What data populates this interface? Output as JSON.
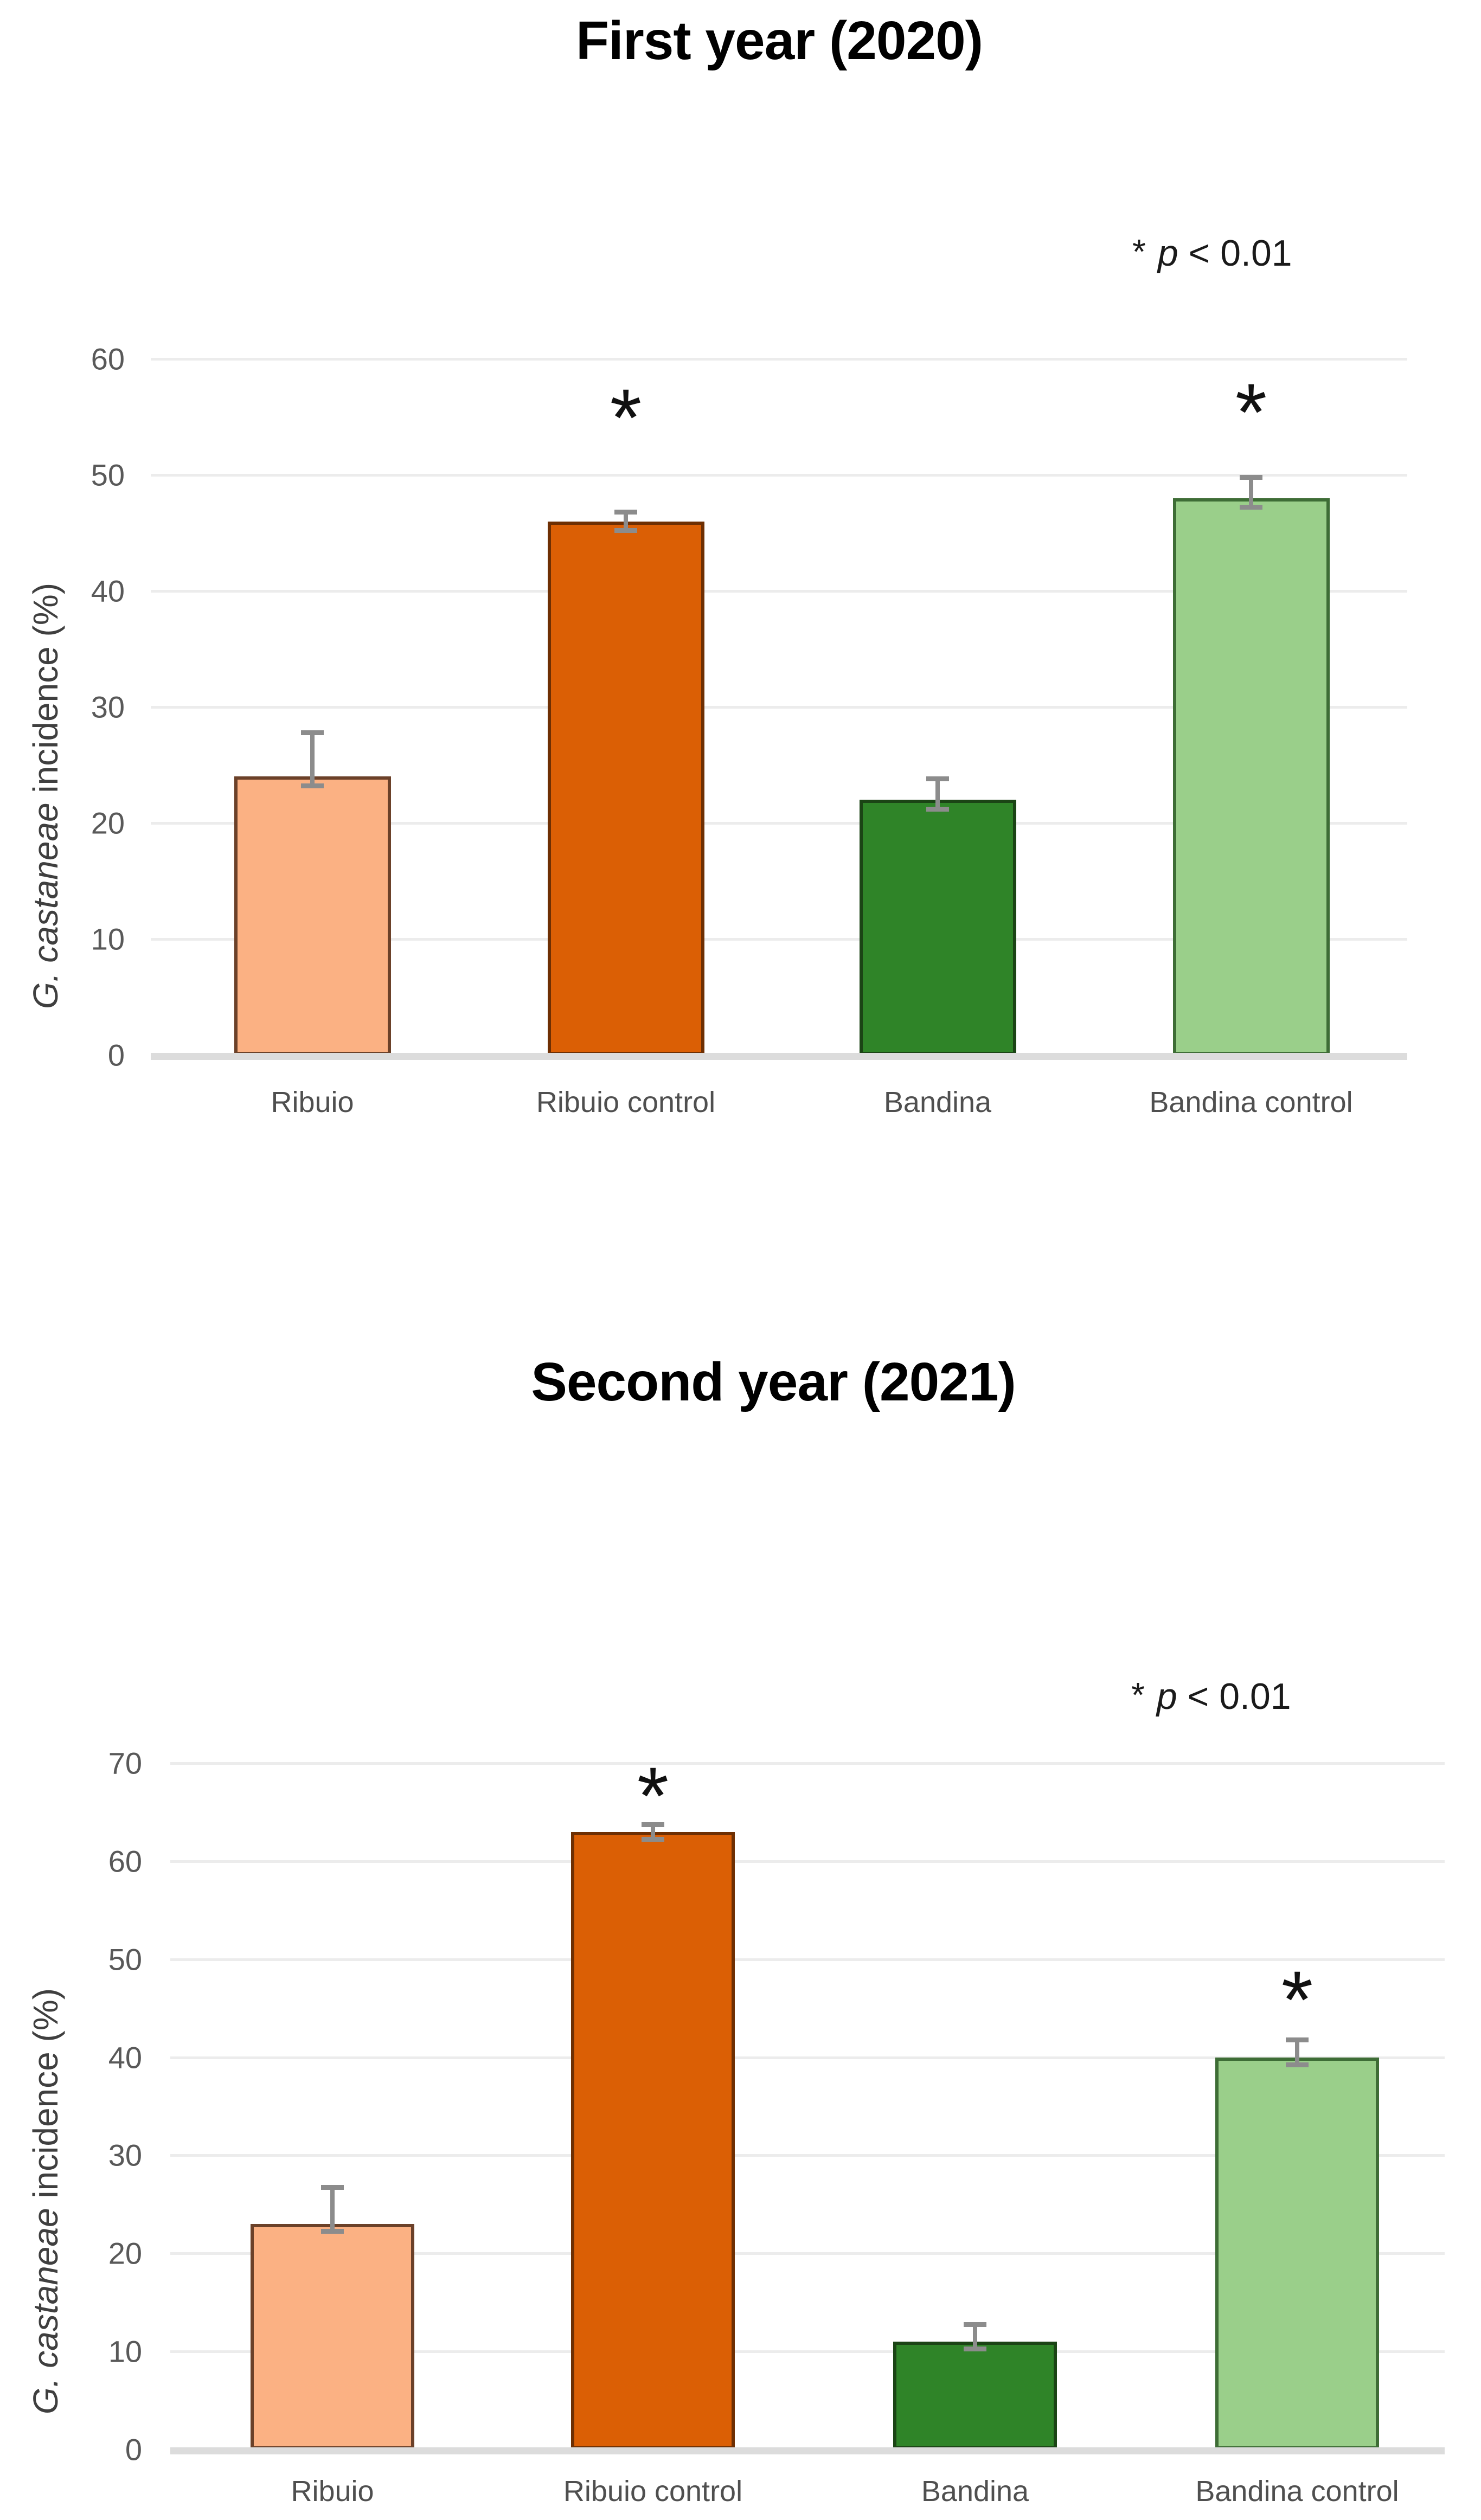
{
  "page": {
    "background": "#FFFFFF"
  },
  "chart_data": [
    {
      "id": "first-year-2020",
      "type": "bar",
      "title": "First year (2020)",
      "annotation": {
        "marker": "*",
        "p_symbol": "p",
        "threshold": " < 0.01"
      },
      "ylabel_italic": "G. castaneae",
      "ylabel_regular": " incidence (%)",
      "categories": [
        "Ribuio",
        "Ribuio control",
        "Bandina",
        "Bandina control"
      ],
      "values": [
        24,
        46,
        22,
        48
      ],
      "errors_plus": [
        4,
        1,
        2,
        2
      ],
      "errors_minus": [
        1,
        1,
        1,
        1
      ],
      "significant": [
        false,
        true,
        false,
        true
      ],
      "sig_marker": "*",
      "ylim": [
        0,
        60
      ],
      "ytick_step": 10,
      "yticks": [
        0,
        10,
        20,
        30,
        40,
        50,
        60
      ],
      "grid": "horizontal",
      "legend": "none",
      "bar_fill_colors": [
        "#FBB183",
        "#DB5F05",
        "#2F8428",
        "#9ACF8A"
      ],
      "bar_border_colors": [
        "#6B4129",
        "#6E2F03",
        "#1B4415",
        "#3E6D36"
      ]
    },
    {
      "id": "second-year-2021",
      "type": "bar",
      "title": "Second year (2021)",
      "annotation": {
        "marker": "*",
        "p_symbol": "p",
        "threshold": " < 0.01"
      },
      "ylabel_italic": "G. castaneae",
      "ylabel_regular": " incidence (%)",
      "categories": [
        "Ribuio",
        "Ribuio control",
        "Bandina",
        "Bandina control"
      ],
      "values": [
        23,
        63,
        11,
        40
      ],
      "errors_plus": [
        4,
        1,
        2,
        2
      ],
      "errors_minus": [
        1,
        1,
        1,
        1
      ],
      "significant": [
        false,
        true,
        false,
        true
      ],
      "sig_marker": "*",
      "ylim": [
        0,
        70
      ],
      "ytick_step": 10,
      "yticks": [
        0,
        10,
        20,
        30,
        40,
        50,
        60,
        70
      ],
      "grid": "horizontal",
      "legend": "none",
      "bar_fill_colors": [
        "#FBB183",
        "#DB5F05",
        "#2F8428",
        "#9ACF8A"
      ],
      "bar_border_colors": [
        "#6B4129",
        "#6E2F03",
        "#1B4415",
        "#3E6D36"
      ]
    }
  ],
  "styles": {
    "page_bg": "#FFFFFF",
    "grid_color": "#ECECEC",
    "axis_line_color": "#DCDCDC",
    "error_bar_color": "#8C8C8C",
    "tick_label_color": "#595959",
    "category_label_color": "#4F4F4F",
    "title_color": "#000000",
    "annotation_color": "#1A1A1A",
    "ylabel_color": "#3F3F3F",
    "sig_color": "#111111"
  }
}
